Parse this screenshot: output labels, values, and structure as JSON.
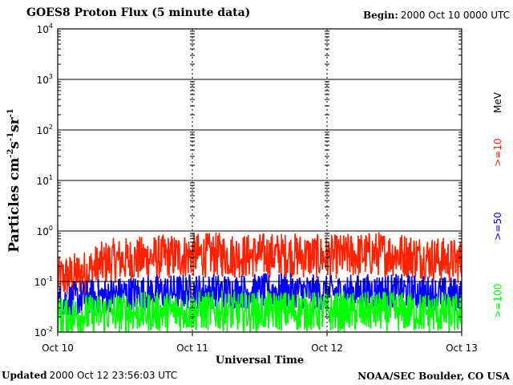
{
  "header": {
    "title": "GOES8 Proton Flux (5 minute data)",
    "begin_label": "Begin:",
    "begin_value": "2000 Oct 10 0000 UTC"
  },
  "footer": {
    "updated_label": "Updated",
    "updated_value": "2000 Oct 12 23:56:03 UTC",
    "credit": "NOAA/SEC Boulder, CO USA"
  },
  "chart_data": {
    "type": "line",
    "xlabel": "Universal Time",
    "ylabel_parts": [
      "Particles cm",
      "-2",
      "s",
      "-1",
      "sr",
      "-1"
    ],
    "y_scale": "log",
    "ylim": [
      0.01,
      10000
    ],
    "y_ticks": [
      {
        "base": "10",
        "exp": "-2",
        "value": 0.01
      },
      {
        "base": "10",
        "exp": "-1",
        "value": 0.1
      },
      {
        "base": "10",
        "exp": "0",
        "value": 1
      },
      {
        "base": "10",
        "exp": "1",
        "value": 10
      },
      {
        "base": "10",
        "exp": "2",
        "value": 100
      },
      {
        "base": "10",
        "exp": "3",
        "value": 1000
      },
      {
        "base": "10",
        "exp": "4",
        "value": 10000
      }
    ],
    "x_ticks": [
      "Oct 10",
      "Oct 11",
      "Oct 12",
      "Oct 13"
    ],
    "grid": true,
    "legend_placement": "right",
    "legend_unit": "MeV",
    "series": [
      {
        "name": ">=10",
        "color": "#ff2200",
        "base": [
          0.11,
          0.15,
          0.26,
          0.28,
          0.31,
          0.33,
          0.34,
          0.32,
          0.34,
          0.33,
          0.3,
          0.33,
          0.36,
          0.33,
          0.28,
          0.25
        ],
        "spread": 0.45
      },
      {
        "name": ">=50",
        "color": "#0000ff",
        "base": [
          0.04,
          0.048,
          0.055,
          0.06,
          0.062,
          0.064,
          0.065,
          0.064,
          0.066,
          0.064,
          0.06,
          0.063,
          0.065,
          0.063,
          0.058,
          0.055
        ],
        "spread": 0.35
      },
      {
        "name": ">=100",
        "color": "#00ff00",
        "base": [
          0.02,
          0.022,
          0.024,
          0.025,
          0.025,
          0.026,
          0.026,
          0.025,
          0.026,
          0.026,
          0.025,
          0.025,
          0.026,
          0.025,
          0.024,
          0.023
        ],
        "spread": 0.4
      }
    ]
  }
}
